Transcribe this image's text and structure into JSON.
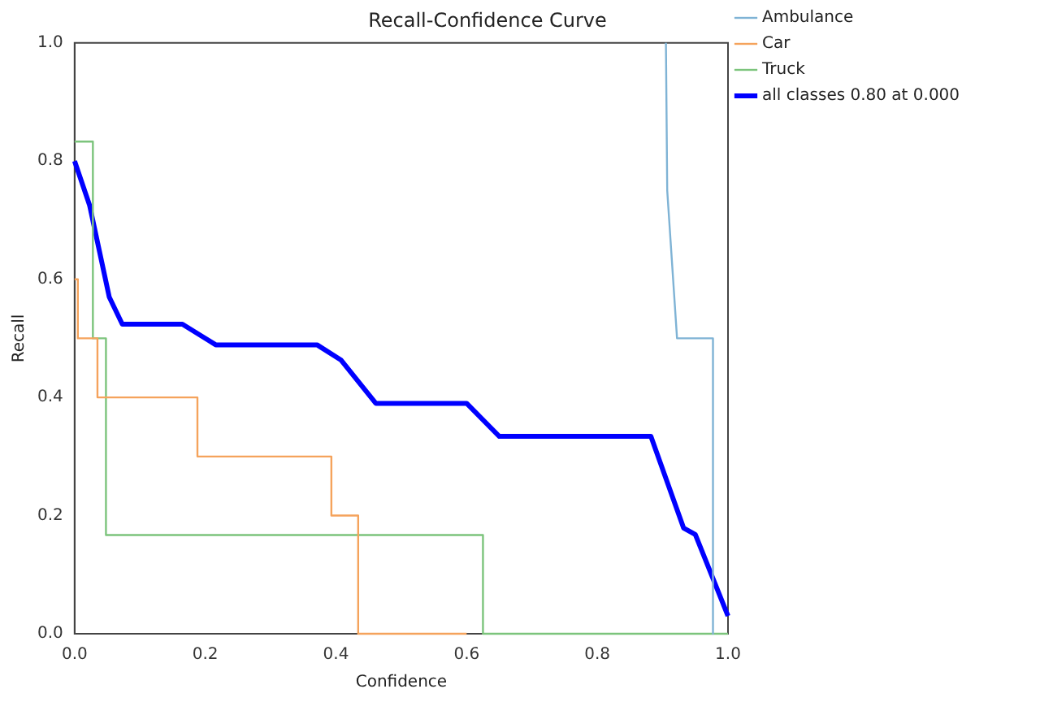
{
  "chart_data": {
    "type": "line",
    "title": "Recall-Confidence Curve",
    "xlabel": "Confidence",
    "ylabel": "Recall",
    "xlim": [
      0,
      1
    ],
    "ylim": [
      0,
      1
    ],
    "xticks": [
      {
        "value": 0,
        "label": "0.0"
      },
      0.2,
      0.4,
      0.6,
      0.8,
      {
        "value": 1,
        "label": "1.0"
      }
    ],
    "yticks": [
      {
        "value": 0,
        "label": "0.0"
      },
      0.2,
      0.4,
      0.6,
      0.8,
      {
        "value": 1,
        "label": "1.0"
      }
    ],
    "grid": false,
    "legend": "top right",
    "marker": "none",
    "series": [
      {
        "name": "Ambulance",
        "type": "line",
        "color": "#7fb3d5",
        "x": [
          0.905,
          0.907,
          0.922,
          0.977,
          0.977
        ],
        "values": [
          1,
          0.75,
          0.5,
          0.5,
          0
        ]
      },
      {
        "name": "Car",
        "type": "step",
        "color": "#f5a35c",
        "x": [
          0,
          0.005,
          0.035,
          0.188,
          0.393,
          0.434,
          0.6
        ],
        "values": [
          0.6,
          0.5,
          0.4,
          0.3,
          0.2,
          0,
          0
        ]
      },
      {
        "name": "Truck",
        "type": "step",
        "color": "#7cc47c",
        "x": [
          0,
          0.028,
          0.048,
          0.625,
          1
        ],
        "values": [
          0.833,
          0.5,
          0.167,
          0,
          0
        ]
      },
      {
        "name": "all classes 0.80 at 0.000",
        "type": "line",
        "color": "#0000ff",
        "x": [
          0,
          0.023,
          0.053,
          0.073,
          0.165,
          0.216,
          0.371,
          0.408,
          0.461,
          0.6,
          0.65,
          0.882,
          0.932,
          0.95,
          1
        ],
        "values": [
          0.8,
          0.725,
          0.57,
          0.524,
          0.524,
          0.489,
          0.489,
          0.463,
          0.39,
          0.39,
          0.334,
          0.334,
          0.179,
          0.168,
          0.03
        ]
      }
    ]
  }
}
